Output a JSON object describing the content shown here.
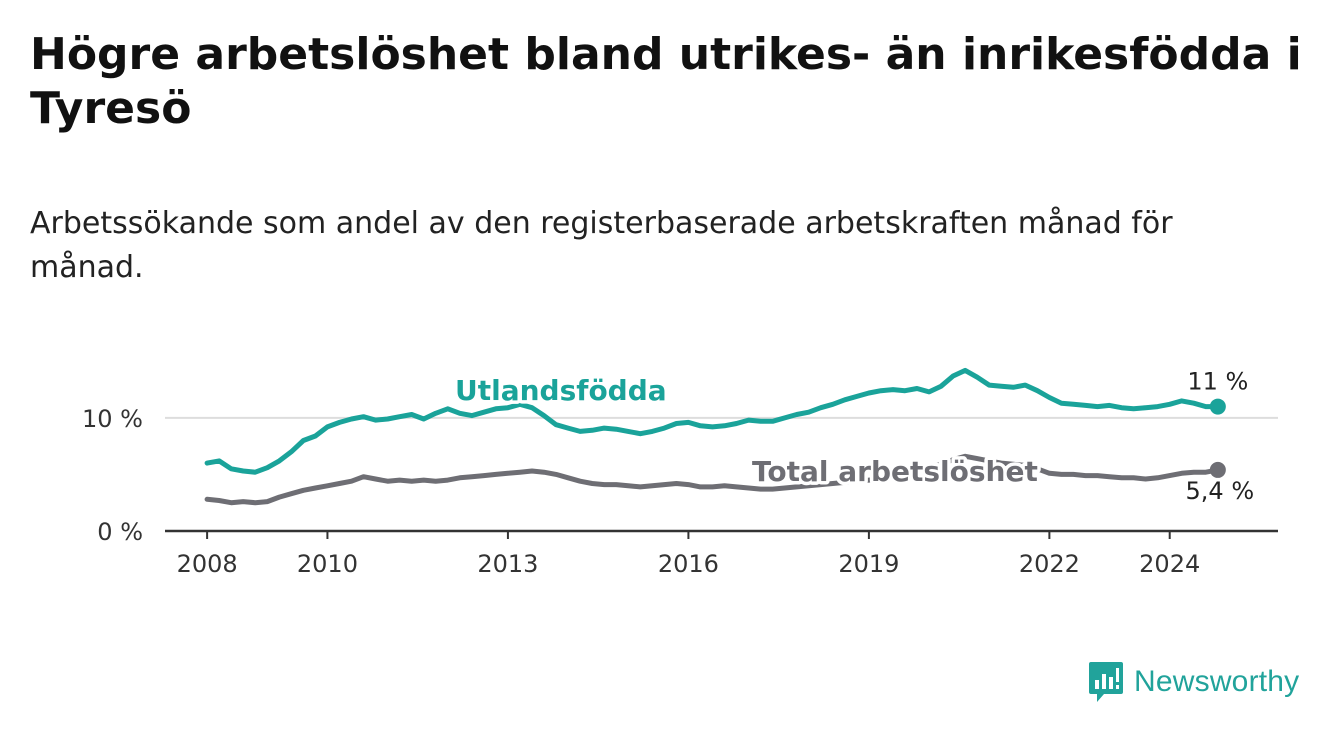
{
  "title": "Högre arbetslöshet bland utrikes- än inrikesfödda i Tyresö",
  "subtitle": "Arbetssökande som andel av den registerbaserade arbetskraften månad för månad.",
  "brand": {
    "name": "Newsworthy",
    "icon": "bar-chart-logo-icon"
  },
  "colors": {
    "foreign_born": "#1aa39a",
    "total": "#6e6e74",
    "grid": "#dddddd",
    "axis": "#333333"
  },
  "chart_data": {
    "type": "line",
    "title": "Högre arbetslöshet bland utrikes- än inrikesfödda i Tyresö",
    "xlabel": "",
    "ylabel": "",
    "unit": "%",
    "xlim": [
      2007.3,
      2025.8
    ],
    "ylim": [
      0,
      16
    ],
    "xticks": [
      {
        "value": 2008,
        "label": "2008"
      },
      {
        "value": 2010,
        "label": "2010"
      },
      {
        "value": 2013,
        "label": "2013"
      },
      {
        "value": 2016,
        "label": "2016"
      },
      {
        "value": 2019,
        "label": "2019"
      },
      {
        "value": 2022,
        "label": "2022"
      },
      {
        "value": 2024,
        "label": "2024"
      }
    ],
    "yticks": [
      {
        "value": 0,
        "label": "0 %"
      },
      {
        "value": 10,
        "label": "10 %"
      }
    ],
    "series": [
      {
        "name": "Utlandsfödda",
        "label": "Utlandsfödda",
        "end_label": "11 %",
        "x": [
          2008.0,
          2008.2,
          2008.4,
          2008.6,
          2008.8,
          2009.0,
          2009.2,
          2009.4,
          2009.6,
          2009.8,
          2010.0,
          2010.2,
          2010.4,
          2010.6,
          2010.8,
          2011.0,
          2011.2,
          2011.4,
          2011.6,
          2011.8,
          2012.0,
          2012.2,
          2012.4,
          2012.6,
          2012.8,
          2013.0,
          2013.2,
          2013.4,
          2013.6,
          2013.8,
          2014.0,
          2014.2,
          2014.4,
          2014.6,
          2014.8,
          2015.0,
          2015.2,
          2015.4,
          2015.6,
          2015.8,
          2016.0,
          2016.2,
          2016.4,
          2016.6,
          2016.8,
          2017.0,
          2017.2,
          2017.4,
          2017.6,
          2017.8,
          2018.0,
          2018.2,
          2018.4,
          2018.6,
          2018.8,
          2019.0,
          2019.2,
          2019.4,
          2019.6,
          2019.8,
          2020.0,
          2020.2,
          2020.4,
          2020.6,
          2020.8,
          2021.0,
          2021.2,
          2021.4,
          2021.6,
          2021.8,
          2022.0,
          2022.2,
          2022.4,
          2022.6,
          2022.8,
          2023.0,
          2023.2,
          2023.4,
          2023.6,
          2023.8,
          2024.0,
          2024.2,
          2024.4,
          2024.6,
          2024.8
        ],
        "values": [
          6.0,
          6.2,
          5.5,
          5.3,
          5.2,
          5.6,
          6.2,
          7.0,
          8.0,
          8.4,
          9.2,
          9.6,
          9.9,
          10.1,
          9.8,
          9.9,
          10.1,
          10.3,
          9.9,
          10.4,
          10.8,
          10.4,
          10.2,
          10.5,
          10.8,
          10.9,
          11.2,
          10.9,
          10.2,
          9.4,
          9.1,
          8.8,
          8.9,
          9.1,
          9.0,
          8.8,
          8.6,
          8.8,
          9.1,
          9.5,
          9.6,
          9.3,
          9.2,
          9.3,
          9.5,
          9.8,
          9.7,
          9.7,
          10.0,
          10.3,
          10.5,
          10.9,
          11.2,
          11.6,
          11.9,
          12.2,
          12.4,
          12.5,
          12.4,
          12.6,
          12.3,
          12.8,
          13.7,
          14.2,
          13.6,
          12.9,
          12.8,
          12.7,
          12.9,
          12.4,
          11.8,
          11.3,
          11.2,
          11.1,
          11.0,
          11.1,
          10.9,
          10.8,
          10.9,
          11.0,
          11.2,
          11.5,
          11.3,
          11.0,
          11.0
        ]
      },
      {
        "name": "Total arbetslöshet",
        "label": "Total arbetslöshet",
        "end_label": "5,4 %",
        "x": [
          2008.0,
          2008.2,
          2008.4,
          2008.6,
          2008.8,
          2009.0,
          2009.2,
          2009.4,
          2009.6,
          2009.8,
          2010.0,
          2010.2,
          2010.4,
          2010.6,
          2010.8,
          2011.0,
          2011.2,
          2011.4,
          2011.6,
          2011.8,
          2012.0,
          2012.2,
          2012.4,
          2012.6,
          2012.8,
          2013.0,
          2013.2,
          2013.4,
          2013.6,
          2013.8,
          2014.0,
          2014.2,
          2014.4,
          2014.6,
          2014.8,
          2015.0,
          2015.2,
          2015.4,
          2015.6,
          2015.8,
          2016.0,
          2016.2,
          2016.4,
          2016.6,
          2016.8,
          2017.0,
          2017.2,
          2017.4,
          2017.6,
          2017.8,
          2018.0,
          2018.2,
          2018.4,
          2018.6,
          2018.8,
          2019.0,
          2019.2,
          2019.4,
          2019.6,
          2019.8,
          2020.0,
          2020.2,
          2020.4,
          2020.6,
          2020.8,
          2021.0,
          2021.2,
          2021.4,
          2021.6,
          2021.8,
          2022.0,
          2022.2,
          2022.4,
          2022.6,
          2022.8,
          2023.0,
          2023.2,
          2023.4,
          2023.6,
          2023.8,
          2024.0,
          2024.2,
          2024.4,
          2024.6,
          2024.8
        ],
        "values": [
          2.8,
          2.7,
          2.5,
          2.6,
          2.5,
          2.6,
          3.0,
          3.3,
          3.6,
          3.8,
          4.0,
          4.2,
          4.4,
          4.8,
          4.6,
          4.4,
          4.5,
          4.4,
          4.5,
          4.4,
          4.5,
          4.7,
          4.8,
          4.9,
          5.0,
          5.1,
          5.2,
          5.3,
          5.2,
          5.0,
          4.7,
          4.4,
          4.2,
          4.1,
          4.1,
          4.0,
          3.9,
          4.0,
          4.1,
          4.2,
          4.1,
          3.9,
          3.9,
          4.0,
          3.9,
          3.8,
          3.7,
          3.7,
          3.8,
          3.9,
          4.0,
          4.1,
          4.2,
          4.3,
          4.4,
          4.5,
          4.6,
          4.8,
          5.0,
          5.3,
          5.6,
          5.9,
          6.3,
          6.6,
          6.4,
          6.2,
          6.0,
          5.9,
          5.8,
          5.5,
          5.1,
          5.0,
          5.0,
          4.9,
          4.9,
          4.8,
          4.7,
          4.7,
          4.6,
          4.7,
          4.9,
          5.1,
          5.2,
          5.2,
          5.4
        ]
      }
    ]
  }
}
